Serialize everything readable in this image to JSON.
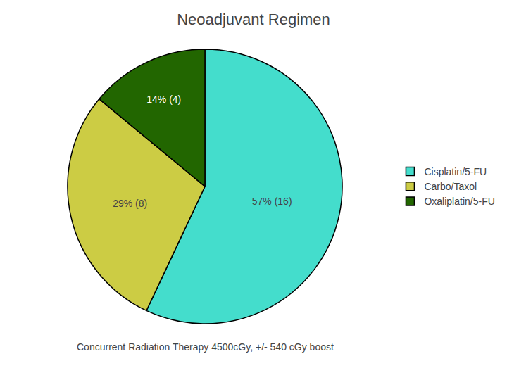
{
  "chart_data": {
    "type": "pie",
    "title": "Neoadjuvant Regimen",
    "categories": [
      "Cisplatin/5-FU",
      "Carbo/Taxol",
      "Oxaliplatin/5-FU"
    ],
    "values": [
      57,
      29,
      14
    ],
    "value_labels": [
      "57% (16)",
      "29% (8)",
      "14% (4)"
    ],
    "colors": [
      "#44ddcc",
      "#cccc44",
      "#226600"
    ],
    "data_labels": true,
    "legend": "right",
    "annotations": [
      "Concurrent Radiation Therapy 4500cGy, +/- 540 cGy boost"
    ]
  }
}
